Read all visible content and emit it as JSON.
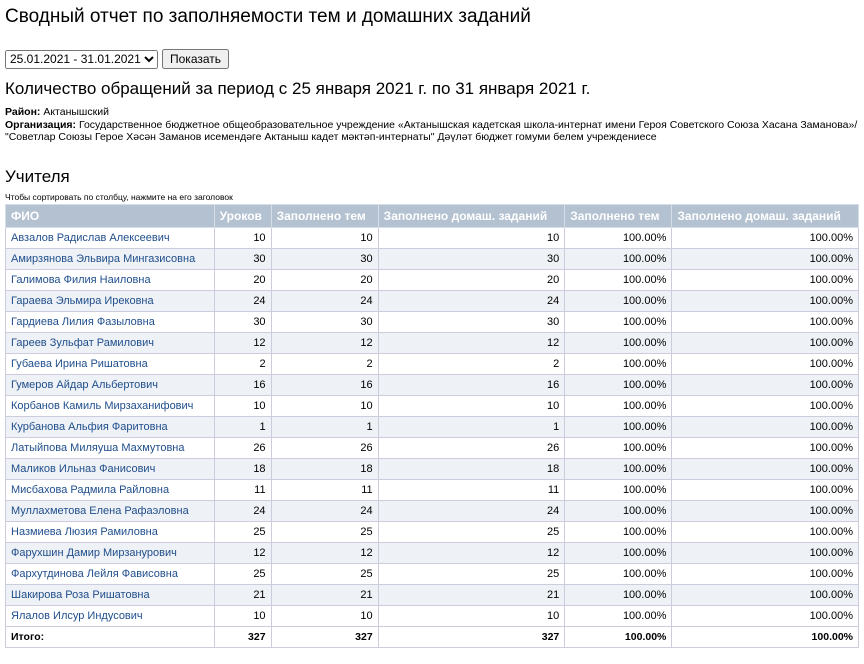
{
  "header": {
    "title": "Сводный отчет по заполняемости тем и домашних заданий"
  },
  "controls": {
    "period": "25.01.2021 - 31.01.2021",
    "button": "Показать"
  },
  "summary": {
    "heading": "Количество обращений за период с 25 января 2021 г. по 31 января 2021 г.",
    "district_label": "Район:",
    "district": "Актанышский",
    "org_label": "Организация:",
    "org": "Государственное бюджетное общеобразовательное учреждение «Актанышская кадетская школа-интернат имени Героя Советского Союза Хасана Заманова»/ \"Советлар Союзы Герое Хәсән Заманов исемендәге Актаныш кадет мәктәп-интернаты\" Дәүләт бюджет гомуми белем учреждениесе"
  },
  "section": {
    "title": "Учителя",
    "hint": "Чтобы сортировать по столбцу, нажмите на его заголовок"
  },
  "table": {
    "columns": [
      "ФИО",
      "Уроков",
      "Заполнено тем",
      "Заполнено домаш. заданий",
      "Заполнено тем",
      "Заполнено домаш. заданий"
    ],
    "rows": [
      [
        "Авзалов Радислав Алексеевич",
        10,
        10,
        10,
        "100.00%",
        "100.00%"
      ],
      [
        "Амирзянова Эльвира Мингазисовна",
        30,
        30,
        30,
        "100.00%",
        "100.00%"
      ],
      [
        "Галимова Филия Наиловна",
        20,
        20,
        20,
        "100.00%",
        "100.00%"
      ],
      [
        "Гараева Эльмира Ирековна",
        24,
        24,
        24,
        "100.00%",
        "100.00%"
      ],
      [
        "Гардиева Лилия Фазыловна",
        30,
        30,
        30,
        "100.00%",
        "100.00%"
      ],
      [
        "Гареев Зульфат Рамилович",
        12,
        12,
        12,
        "100.00%",
        "100.00%"
      ],
      [
        "Губаева Ирина Ришатовна",
        2,
        2,
        2,
        "100.00%",
        "100.00%"
      ],
      [
        "Гумеров Айдар Альбертович",
        16,
        16,
        16,
        "100.00%",
        "100.00%"
      ],
      [
        "Корбанов Камиль Мирзаханифович",
        10,
        10,
        10,
        "100.00%",
        "100.00%"
      ],
      [
        "Курбанова Альфия Фаритовна",
        1,
        1,
        1,
        "100.00%",
        "100.00%"
      ],
      [
        "Латыйпова Миляуша Махмутовна",
        26,
        26,
        26,
        "100.00%",
        "100.00%"
      ],
      [
        "Маликов Ильназ Фанисович",
        18,
        18,
        18,
        "100.00%",
        "100.00%"
      ],
      [
        "Мисбахова Радмила Райловна",
        11,
        11,
        11,
        "100.00%",
        "100.00%"
      ],
      [
        "Муллахметова Елена Рафаэловна",
        24,
        24,
        24,
        "100.00%",
        "100.00%"
      ],
      [
        "Назмиева Люзия Рамиловна",
        25,
        25,
        25,
        "100.00%",
        "100.00%"
      ],
      [
        "Фарухшин Дамир Мирзанурович",
        12,
        12,
        12,
        "100.00%",
        "100.00%"
      ],
      [
        "Фархутдинова Лейля Фависовна",
        25,
        25,
        25,
        "100.00%",
        "100.00%"
      ],
      [
        "Шакирова Роза Ришатовна",
        21,
        21,
        21,
        "100.00%",
        "100.00%"
      ],
      [
        "Ялалов Илсур Индусович",
        10,
        10,
        10,
        "100.00%",
        "100.00%"
      ]
    ],
    "total": [
      "Итого:",
      327,
      327,
      327,
      "100.00%",
      "100.00%"
    ]
  }
}
